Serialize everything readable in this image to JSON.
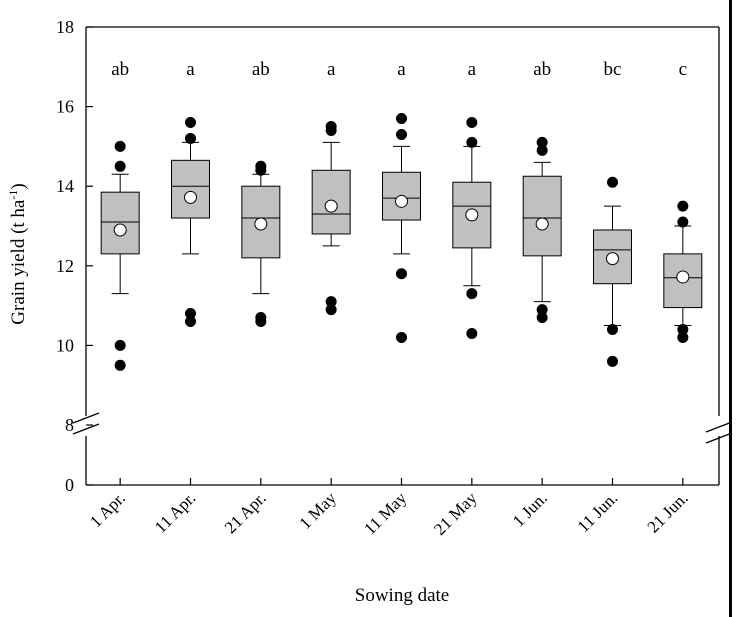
{
  "chart_data": {
    "type": "box",
    "xlabel": "Sowing date",
    "ylabel": {
      "main": "Grain yield (t ha",
      "superscript": "-1",
      "close": ")"
    },
    "y_ticks": [
      "0",
      "8",
      "10",
      "12",
      "14",
      "16",
      "18"
    ],
    "y_axis_break": {
      "from": 0,
      "to": 8
    },
    "ylim": [
      0,
      18
    ],
    "categories": [
      "1 Apr.",
      "11 Apr.",
      "21 Apr.",
      "1 May",
      "11 May",
      "21 May",
      "1 Jun.",
      "11 Jun.",
      "21 Jun."
    ],
    "significance_letters": [
      "ab",
      "a",
      "ab",
      "a",
      "a",
      "a",
      "ab",
      "bc",
      "c"
    ],
    "boxes": [
      {
        "whisker_low": 11.3,
        "q1": 12.3,
        "median": 13.1,
        "q3": 13.85,
        "whisker_high": 14.3,
        "mean": 12.9,
        "outliers": [
          15.0,
          14.5,
          10.0,
          9.5
        ]
      },
      {
        "whisker_low": 12.3,
        "q1": 13.2,
        "median": 14.0,
        "q3": 14.65,
        "whisker_high": 15.1,
        "mean": 13.72,
        "outliers": [
          15.6,
          15.2,
          10.8,
          10.6
        ]
      },
      {
        "whisker_low": 11.3,
        "q1": 12.2,
        "median": 13.2,
        "q3": 14.0,
        "whisker_high": 14.3,
        "mean": 13.05,
        "outliers": [
          14.5,
          14.4,
          10.7,
          10.6
        ]
      },
      {
        "whisker_low": 12.5,
        "q1": 12.8,
        "median": 13.3,
        "q3": 14.4,
        "whisker_high": 15.1,
        "mean": 13.5,
        "outliers": [
          15.5,
          15.4,
          11.1,
          10.9
        ]
      },
      {
        "whisker_low": 12.3,
        "q1": 13.15,
        "median": 13.7,
        "q3": 14.35,
        "whisker_high": 15.0,
        "mean": 13.62,
        "outliers": [
          15.7,
          15.3,
          11.8,
          10.2
        ]
      },
      {
        "whisker_low": 11.5,
        "q1": 12.45,
        "median": 13.5,
        "q3": 14.1,
        "whisker_high": 15.0,
        "mean": 13.28,
        "outliers": [
          15.6,
          15.1,
          11.3,
          10.3
        ]
      },
      {
        "whisker_low": 11.1,
        "q1": 12.25,
        "median": 13.2,
        "q3": 14.25,
        "whisker_high": 14.6,
        "mean": 13.05,
        "outliers": [
          15.1,
          14.9,
          10.9,
          10.7
        ]
      },
      {
        "whisker_low": 10.5,
        "q1": 11.55,
        "median": 12.4,
        "q3": 12.9,
        "whisker_high": 13.5,
        "mean": 12.18,
        "outliers": [
          14.1,
          10.4,
          9.6
        ]
      },
      {
        "whisker_low": 10.5,
        "q1": 10.95,
        "median": 11.7,
        "q3": 12.3,
        "whisker_high": 13.0,
        "mean": 11.72,
        "outliers": [
          13.5,
          13.1,
          10.4,
          10.2
        ]
      }
    ],
    "colors": {
      "box_fill": "#c0c0c0",
      "outlier": "#000000",
      "mean_marker": "#ffffff",
      "axis": "#000000"
    }
  }
}
